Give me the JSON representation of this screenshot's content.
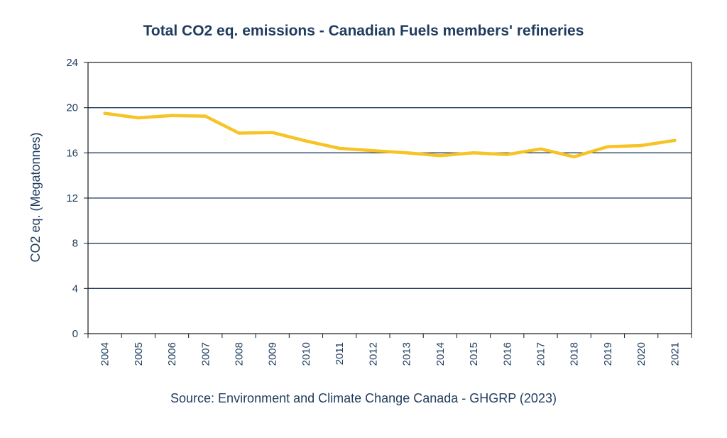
{
  "chart_data": {
    "type": "line",
    "title": "Total CO2 eq. emissions - Canadian Fuels members' refineries",
    "ylabel": "CO2 eq.  (Megatonnes)",
    "xlabel": "",
    "source": "Source: Environment and Climate Change Canada - GHGRP (2023)",
    "ylim": [
      0,
      24
    ],
    "yticks": [
      "0",
      "4",
      "8",
      "12",
      "16",
      "20",
      "24"
    ],
    "categories": [
      "2004",
      "2005",
      "2006",
      "2007",
      "2008",
      "2009",
      "2010",
      "2011",
      "2012",
      "2013",
      "2014",
      "2015",
      "2016",
      "2017",
      "2018",
      "2019",
      "2020",
      "2021"
    ],
    "series": [
      {
        "values": [
          19.5,
          19.1,
          19.3,
          19.25,
          17.75,
          17.8,
          17.05,
          16.4,
          16.2,
          16.0,
          15.75,
          16.0,
          15.85,
          16.35,
          15.65,
          16.55,
          16.65,
          17.1
        ],
        "color": "#f7c325"
      }
    ],
    "grid": true,
    "legend": "none"
  }
}
